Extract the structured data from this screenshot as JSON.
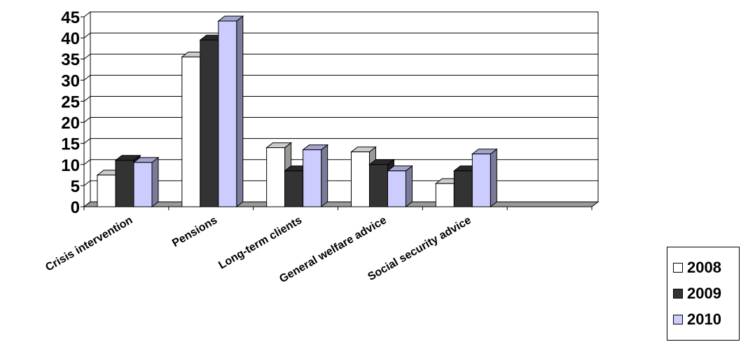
{
  "chart_data": {
    "type": "bar",
    "categories": [
      "Crisis intervention",
      "Pensions",
      "Long-term clients",
      "General welfare advice",
      "Social security advice",
      ""
    ],
    "series": [
      {
        "name": "2008",
        "values": [
          7.5,
          35.5,
          14,
          13,
          5.5,
          null
        ]
      },
      {
        "name": "2009",
        "values": [
          11,
          39.5,
          8.5,
          10,
          8.5,
          null
        ]
      },
      {
        "name": "2010",
        "values": [
          10.5,
          44,
          13.5,
          8.5,
          12.5,
          null
        ]
      }
    ],
    "ylim": [
      0,
      45
    ],
    "yticks": [
      "0",
      "5",
      "10",
      "15",
      "20",
      "25",
      "30",
      "35",
      "40",
      "45"
    ],
    "grid": true,
    "legend_position": "bottom-right",
    "colors": {
      "2008": "#ffffff",
      "2009": "#333333",
      "2010": "#ccccff"
    },
    "title": "",
    "xlabel": "",
    "ylabel": ""
  }
}
